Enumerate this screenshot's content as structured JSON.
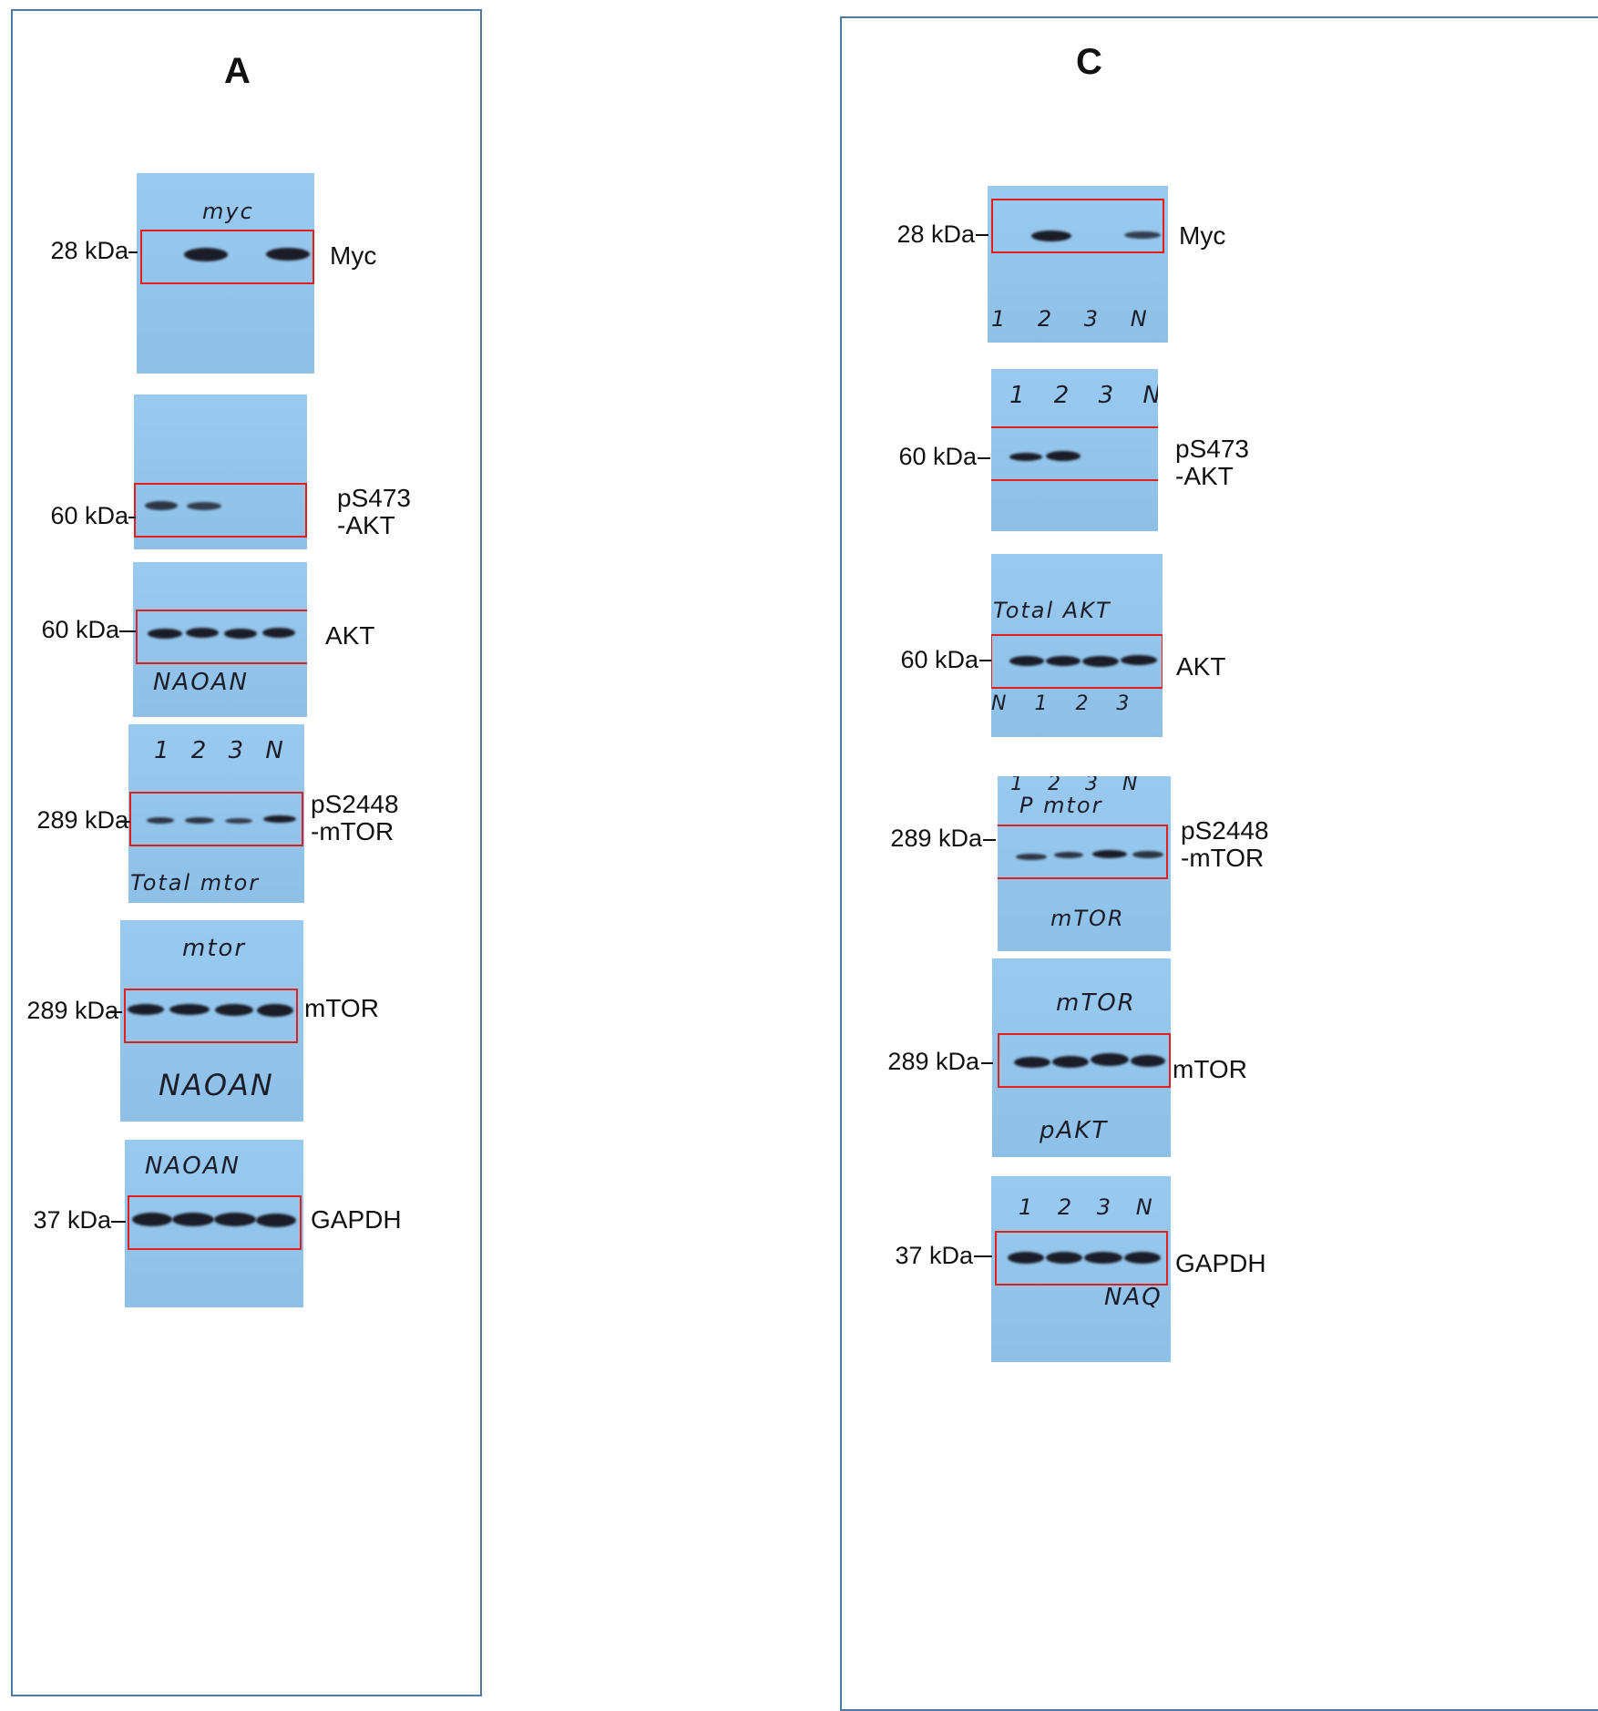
{
  "panels": [
    {
      "title": "A",
      "blots": [
        {
          "marker": "28 kDa",
          "protein": "Myc",
          "protein_line2": "",
          "handwriting": [
            "myc"
          ]
        },
        {
          "marker": "60 kDa",
          "protein": "pS473",
          "protein_line2": "-AKT",
          "handwriting": []
        },
        {
          "marker": "60 kDa",
          "protein": "AKT",
          "protein_line2": "",
          "handwriting": [
            "NAOAN"
          ]
        },
        {
          "marker": "289 kDa",
          "protein": "pS2448",
          "protein_line2": "-mTOR",
          "handwriting": [
            "1  2  3  N",
            "Total mtor"
          ]
        },
        {
          "marker": "289 kDa",
          "protein": "mTOR",
          "protein_line2": "",
          "handwriting": [
            "mtor",
            "NAOAN"
          ]
        },
        {
          "marker": "37 kDa",
          "protein": "GAPDH",
          "protein_line2": "",
          "handwriting": [
            "NAOAN"
          ]
        }
      ]
    },
    {
      "title": "C",
      "blots": [
        {
          "marker": "28 kDa",
          "protein": "Myc",
          "protein_line2": "",
          "handwriting": [
            "1  2  3  N"
          ]
        },
        {
          "marker": "60 kDa",
          "protein": "pS473",
          "protein_line2": "-AKT",
          "handwriting": [
            "1  2  3  N"
          ]
        },
        {
          "marker": "60 kDa",
          "protein": "AKT",
          "protein_line2": "",
          "handwriting": [
            "Total AKT",
            "N  1  2  3"
          ]
        },
        {
          "marker": "289 kDa",
          "protein": "pS2448",
          "protein_line2": "-mTOR",
          "handwriting": [
            "1  2  3  N",
            "P mtor",
            "mTOR"
          ]
        },
        {
          "marker": "289 kDa",
          "protein": "mTOR",
          "protein_line2": "",
          "handwriting": [
            "mTOR",
            "pAKT"
          ]
        },
        {
          "marker": "37 kDa",
          "protein": "GAPDH",
          "protein_line2": "",
          "handwriting": [
            "1  2  3  N",
            "NAQ"
          ]
        }
      ]
    }
  ]
}
